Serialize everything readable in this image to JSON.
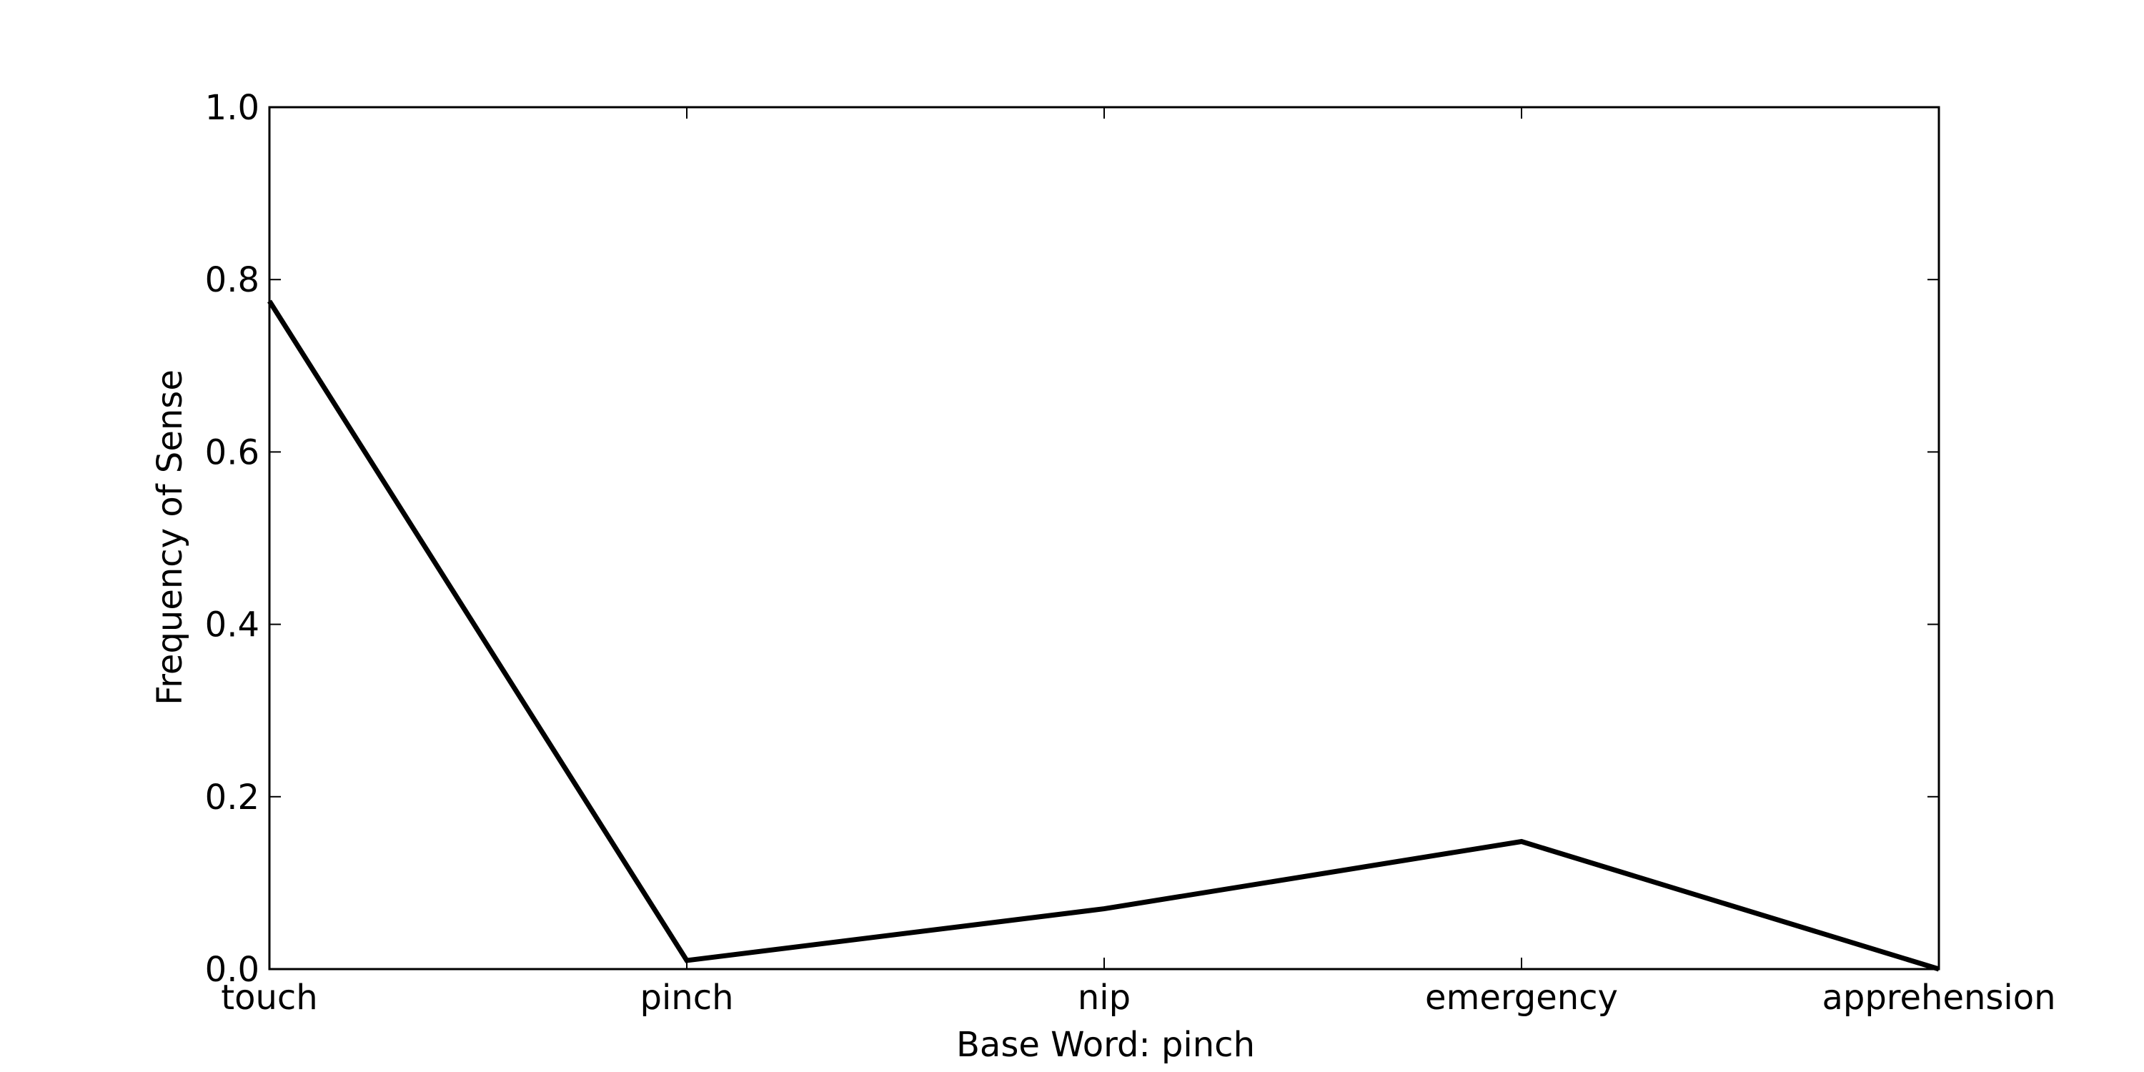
{
  "chart_data": {
    "type": "line",
    "categories": [
      "touch",
      "pinch",
      "nip",
      "emergency",
      "apprehension"
    ],
    "series": [
      {
        "values": [
          0.775,
          0.01,
          0.07,
          0.148,
          0.0
        ],
        "color": "#000000"
      }
    ],
    "xlabel": "Base Word: pinch",
    "ylabel": "Frequency of Sense",
    "ylim": [
      0.0,
      1.0
    ],
    "yticks": [
      0.0,
      0.2,
      0.4,
      0.6,
      0.8,
      1.0
    ],
    "ytick_labels": [
      "0.0",
      "0.2",
      "0.4",
      "0.6",
      "0.8",
      "1.0"
    ],
    "grid": false,
    "legend": "none"
  }
}
